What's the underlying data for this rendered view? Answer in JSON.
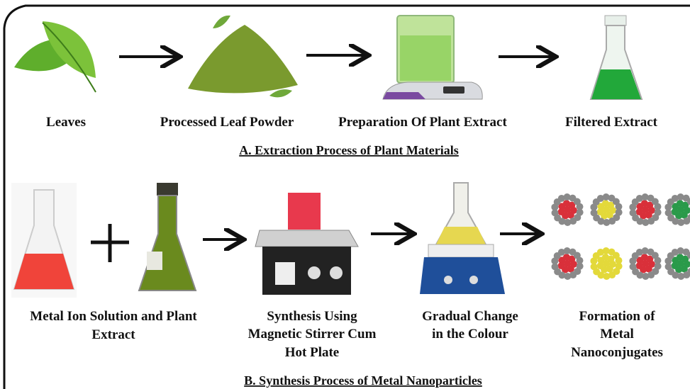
{
  "extraction": {
    "steps": [
      "Leaves",
      "Processed Leaf Powder",
      "Preparation Of Plant Extract",
      "Filtered Extract"
    ],
    "title": "A. Extraction Process of Plant Materials"
  },
  "synthesis": {
    "steps": [
      [
        "Metal Ion Solution and Plant",
        "Extract"
      ],
      [
        "Synthesis Using",
        "Magnetic Stirrer Cum",
        "Hot Plate"
      ],
      [
        "Gradual Change",
        "in the Colour"
      ],
      [
        "Formation of",
        "Metal",
        "Nanoconjugates"
      ]
    ],
    "title": "B. Synthesis Process of Metal Nanoparticles"
  }
}
